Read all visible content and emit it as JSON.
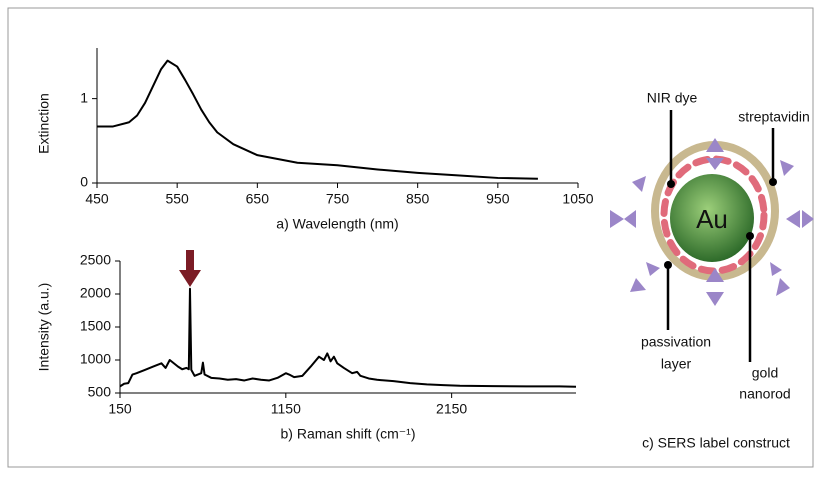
{
  "chart_data": [
    {
      "type": "line",
      "x_label": "a)  Wavelength (nm)",
      "y_label": "Extinction",
      "x": [
        450,
        470,
        490,
        500,
        510,
        520,
        530,
        538,
        550,
        560,
        570,
        580,
        590,
        600,
        620,
        650,
        700,
        750,
        800,
        850,
        900,
        950,
        1000
      ],
      "series": [
        {
          "color": "#000000",
          "values": [
            0.67,
            0.67,
            0.72,
            0.8,
            0.95,
            1.15,
            1.35,
            1.45,
            1.38,
            1.22,
            1.05,
            0.87,
            0.72,
            0.6,
            0.46,
            0.33,
            0.24,
            0.21,
            0.16,
            0.12,
            0.09,
            0.06,
            0.05
          ]
        }
      ],
      "xlim": [
        450,
        1050
      ],
      "ylim": [
        0,
        1.6
      ],
      "xticks": [
        450,
        550,
        650,
        750,
        850,
        950,
        1050
      ],
      "yticks": [
        0,
        1
      ]
    },
    {
      "type": "line",
      "x_label": "b)  Raman shift (cm⁻¹)",
      "y_label": "Intensity (a.u.)",
      "x": [
        150,
        175,
        200,
        225,
        250,
        300,
        350,
        400,
        425,
        450,
        500,
        525,
        550,
        565,
        572,
        580,
        600,
        640,
        650,
        660,
        700,
        750,
        800,
        850,
        900,
        950,
        1000,
        1050,
        1100,
        1150,
        1170,
        1200,
        1250,
        1300,
        1350,
        1380,
        1400,
        1420,
        1440,
        1460,
        1500,
        1550,
        1580,
        1600,
        1650,
        1700,
        1800,
        1900,
        2000,
        2100,
        2200,
        2400,
        2600,
        2800,
        2900
      ],
      "series": [
        {
          "color": "#000000",
          "values": [
            600,
            640,
            650,
            780,
            800,
            850,
            900,
            950,
            880,
            1000,
            900,
            860,
            880,
            860,
            2080,
            850,
            760,
            800,
            960,
            780,
            730,
            720,
            700,
            710,
            690,
            720,
            700,
            690,
            730,
            800,
            780,
            740,
            760,
            900,
            1050,
            1000,
            1100,
            980,
            1050,
            950,
            880,
            800,
            820,
            760,
            720,
            700,
            680,
            650,
            630,
            620,
            610,
            605,
            600,
            600,
            595
          ]
        }
      ],
      "xlim": [
        150,
        2900
      ],
      "ylim": [
        500,
        2500
      ],
      "xticks": [
        150,
        1150,
        2150
      ],
      "yticks": [
        500,
        1000,
        1500,
        2000,
        2500
      ]
    }
  ],
  "diagram": {
    "nir_dye": "NIR dye",
    "streptavidin": "streptavidin",
    "core": "Au",
    "passivation": [
      "passivation",
      "layer"
    ],
    "gold": [
      "gold",
      "nanorod"
    ],
    "caption": "c)  SERS label construct"
  }
}
